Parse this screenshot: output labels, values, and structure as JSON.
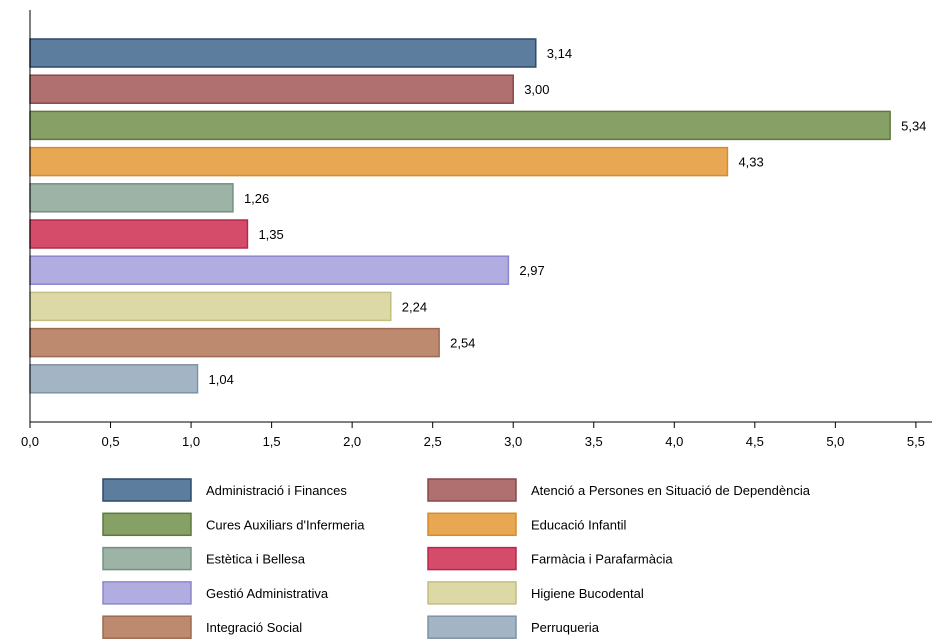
{
  "chart_data": {
    "type": "bar",
    "orientation": "horizontal",
    "title": "",
    "xlabel": "",
    "ylabel": "",
    "xlim": [
      0,
      5.6
    ],
    "x_ticks": [
      0,
      0.5,
      1.0,
      1.5,
      2.0,
      2.5,
      3.0,
      3.5,
      4.0,
      4.5,
      5.0,
      5.5
    ],
    "x_tick_labels": [
      "0,0",
      "0,5",
      "1,0",
      "1,5",
      "2,0",
      "2,5",
      "3,0",
      "3,5",
      "4,0",
      "4,5",
      "5,0",
      "5,5"
    ],
    "grid": false,
    "legend_position": "bottom",
    "series": [
      {
        "name": "Administració i Finances",
        "value": 3.14,
        "label": "3,14",
        "color": "#5c7d9e",
        "border": "#2e4a68"
      },
      {
        "name": "Atenció a Persones en Situació de Dependència",
        "value": 3.0,
        "label": "3,00",
        "color": "#b07070",
        "border": "#884848"
      },
      {
        "name": "Cures Auxiliars d'Infermeria",
        "value": 5.34,
        "label": "5,34",
        "color": "#87a066",
        "border": "#5c7a40"
      },
      {
        "name": "Educació Infantil",
        "value": 4.33,
        "label": "4,33",
        "color": "#e8a753",
        "border": "#d88c28"
      },
      {
        "name": "Estètica i Bellesa",
        "value": 1.26,
        "label": "1,26",
        "color": "#9db3a6",
        "border": "#74917f"
      },
      {
        "name": "Farmàcia i Parafarmàcia",
        "value": 1.35,
        "label": "1,35",
        "color": "#d54c6b",
        "border": "#b42a4a"
      },
      {
        "name": "Gestió Administrativa",
        "value": 2.97,
        "label": "2,97",
        "color": "#b1ade0",
        "border": "#8c86cc"
      },
      {
        "name": "Higiene Bucodental",
        "value": 2.24,
        "label": "2,24",
        "color": "#ddd9a6",
        "border": "#c3be82"
      },
      {
        "name": "Integració Social",
        "value": 2.54,
        "label": "2,54",
        "color": "#bd8a70",
        "border": "#9c6a50"
      },
      {
        "name": "Perruqueria",
        "value": 1.04,
        "label": "1,04",
        "color": "#a3b5c5",
        "border": "#7f93a6"
      }
    ]
  }
}
